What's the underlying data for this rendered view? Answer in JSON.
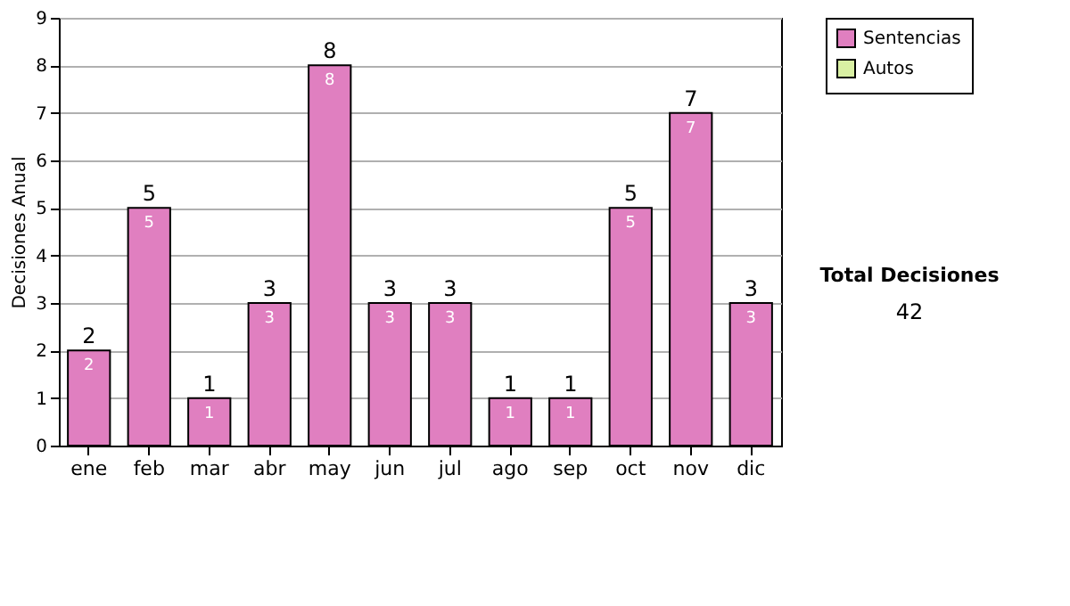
{
  "chart_data": {
    "type": "bar",
    "ylabel": "Decisiones Anual",
    "categories": [
      "ene",
      "feb",
      "mar",
      "abr",
      "may",
      "jun",
      "jul",
      "ago",
      "sep",
      "oct",
      "nov",
      "dic"
    ],
    "series": [
      {
        "name": "Sentencias",
        "color": "#e07fc0",
        "values": [
          2,
          5,
          1,
          3,
          8,
          3,
          3,
          1,
          1,
          5,
          7,
          3
        ],
        "value_labels": [
          "2",
          "5",
          "1",
          "3",
          "8",
          "3",
          "3",
          "1",
          "1",
          "5",
          "7",
          "3"
        ]
      },
      {
        "name": "Autos",
        "color": "#d9f0a3",
        "values": [
          null,
          null,
          null,
          null,
          null,
          null,
          null,
          null,
          null,
          null,
          null,
          null
        ]
      }
    ],
    "stacked": true,
    "totals": [
      "2",
      "5",
      "1",
      "3",
      "8",
      "3",
      "3",
      "1",
      "1",
      "5",
      "7",
      "3"
    ],
    "ylim": [
      0,
      9
    ],
    "yticks": [
      0,
      1,
      2,
      3,
      4,
      5,
      6,
      7,
      8,
      9
    ],
    "grid": "y",
    "legend": "right",
    "annotations": [
      "Total Decisiones",
      "42"
    ]
  }
}
